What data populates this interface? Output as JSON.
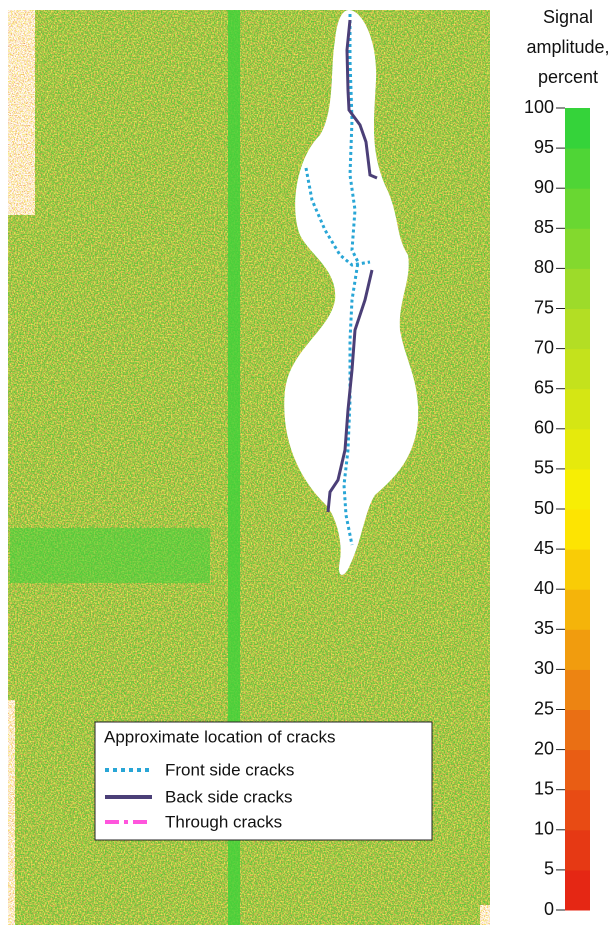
{
  "colorbar": {
    "title_lines": [
      "Signal",
      "amplitude,",
      "percent"
    ],
    "lim": [
      0,
      100
    ],
    "ticks": [
      0,
      5,
      10,
      15,
      20,
      25,
      30,
      35,
      40,
      45,
      50,
      55,
      60,
      65,
      70,
      75,
      80,
      85,
      90,
      95,
      100
    ]
  },
  "legend": {
    "title": "Approximate location of cracks",
    "items": [
      "Front side cracks",
      "Back side cracks",
      "Through cracks"
    ]
  }
}
